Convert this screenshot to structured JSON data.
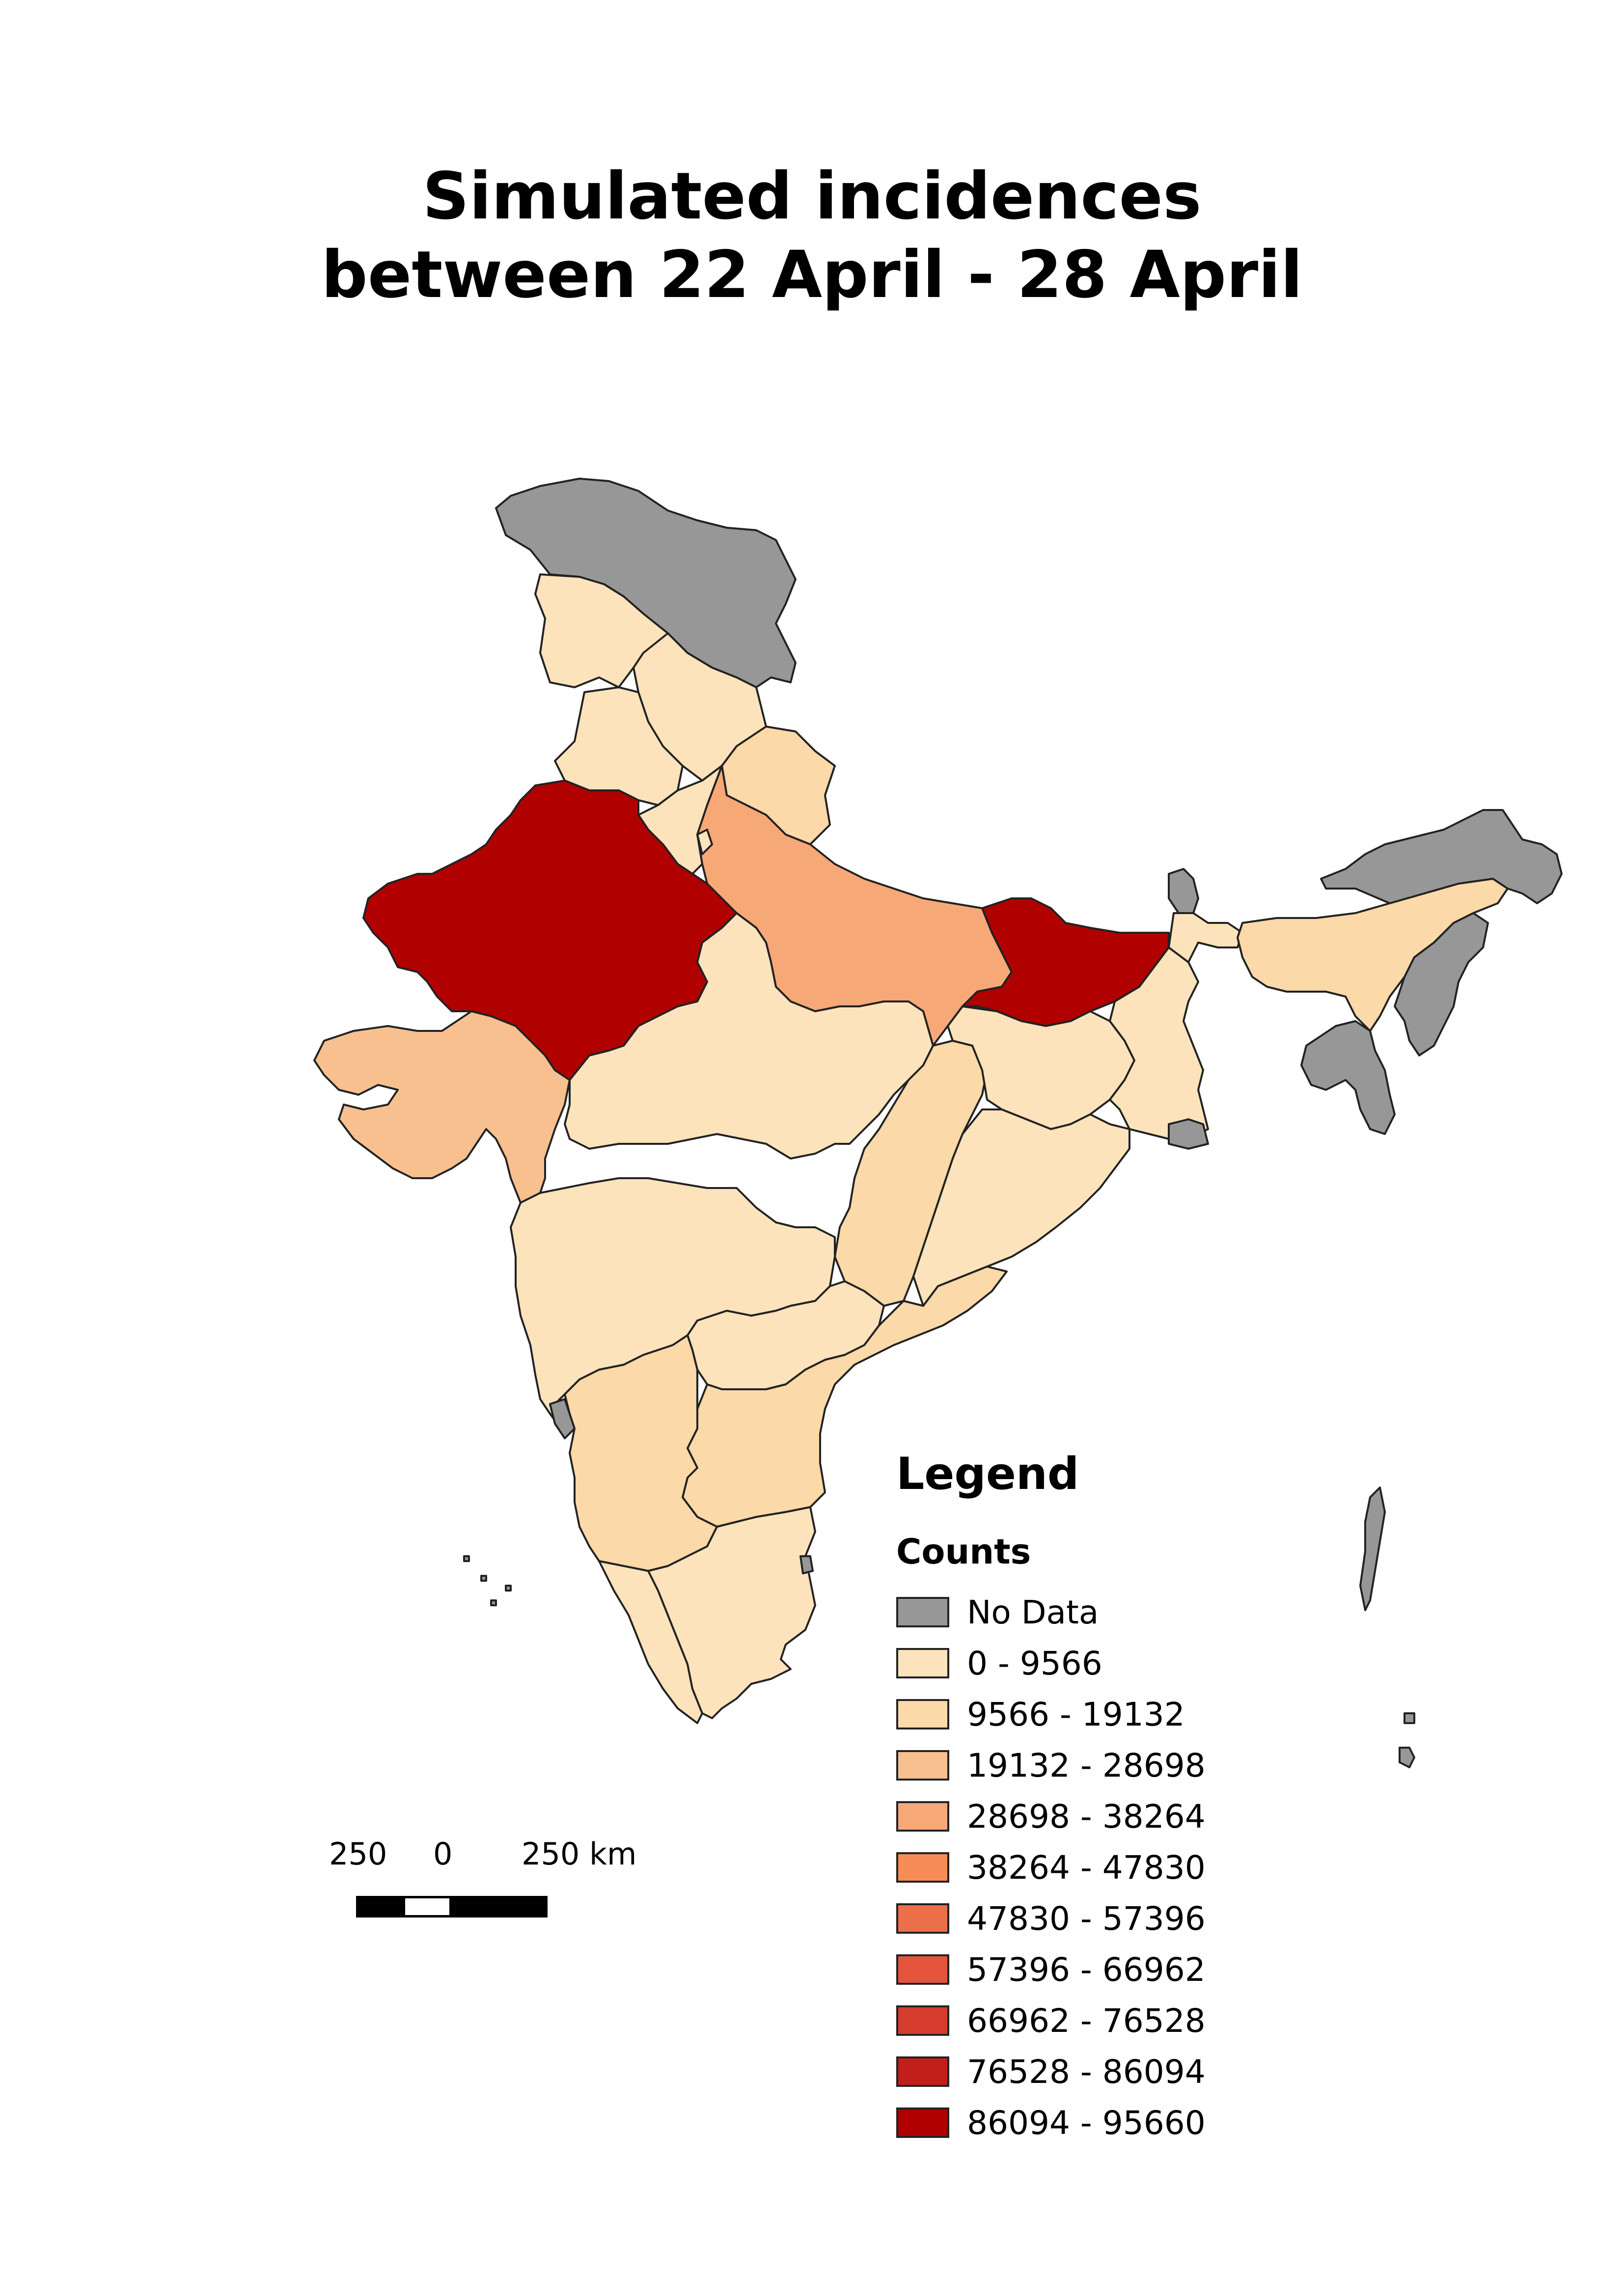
{
  "title_line1": "Simulated incidences",
  "title_line2": "between 22 April - 28 April",
  "legend": {
    "title": "Legend",
    "subtitle": "Counts",
    "items": [
      {
        "label": "No Data",
        "color": "#979797"
      },
      {
        "label": "0 - 9566",
        "color": "#fde3bb"
      },
      {
        "label": "9566 - 19132",
        "color": "#fcd9a8"
      },
      {
        "label": "19132 - 28698",
        "color": "#f8c08f"
      },
      {
        "label": "28698 - 38264",
        "color": "#f7a877"
      },
      {
        "label": "38264 - 47830",
        "color": "#f68c57"
      },
      {
        "label": "47830 - 57396",
        "color": "#ec704a"
      },
      {
        "label": "57396 - 66962",
        "color": "#e4543c"
      },
      {
        "label": "66962 - 76528",
        "color": "#d63d2c"
      },
      {
        "label": "76528 - 86094",
        "color": "#c31f1a"
      },
      {
        "label": "86094 - 95660",
        "color": "#b00000"
      }
    ]
  },
  "scale": {
    "left": "250",
    "middle": "0",
    "right": "250 km"
  }
}
